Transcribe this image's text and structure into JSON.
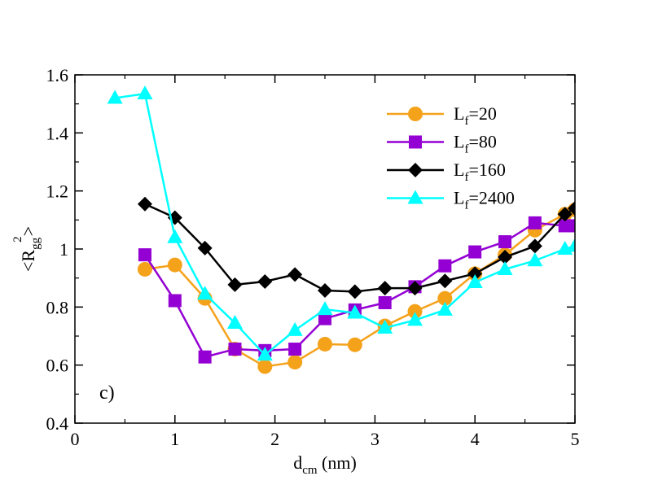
{
  "chart_data": {
    "type": "line",
    "title": "",
    "panel_label": "c)",
    "xlabel": {
      "main": "d",
      "sub": "cm",
      "suffix": " (nm)"
    },
    "ylabel": {
      "prefix": "<R",
      "sub": "gg",
      "sup": "2",
      "suffix": ">"
    },
    "xlim": [
      0,
      5
    ],
    "ylim": [
      0.4,
      1.6
    ],
    "xticks": [
      0,
      1,
      2,
      3,
      4,
      5
    ],
    "xtick_labels": [
      "0",
      "1",
      "2",
      "3",
      "4",
      "5"
    ],
    "yticks": [
      0.4,
      0.6,
      0.8,
      1.0,
      1.2,
      1.4,
      1.6
    ],
    "ytick_labels": [
      "0.4",
      "0.6",
      "0.8",
      "1",
      "1.2",
      "1.4",
      "1.6"
    ],
    "legend_position": "top-right",
    "series": [
      {
        "name": "Lf=20",
        "label_main": "L",
        "label_sub": "f",
        "label_rest": "=20",
        "color": "#f5a21b",
        "marker": "circle",
        "x": [
          0.7,
          1.0,
          1.3,
          1.6,
          1.9,
          2.2,
          2.5,
          2.8,
          3.1,
          3.4,
          3.7,
          4.0,
          4.3,
          4.6,
          4.9,
          5.0
        ],
        "y": [
          0.93,
          0.945,
          0.83,
          0.655,
          0.595,
          0.61,
          0.672,
          0.67,
          0.735,
          0.785,
          0.83,
          0.915,
          0.98,
          1.065,
          1.12,
          1.135
        ]
      },
      {
        "name": "Lf=80",
        "label_main": "L",
        "label_sub": "f",
        "label_rest": "=80",
        "color": "#9400d3",
        "marker": "square",
        "x": [
          0.7,
          1.0,
          1.3,
          1.6,
          1.9,
          2.2,
          2.5,
          2.8,
          3.1,
          3.4,
          3.7,
          4.0,
          4.3,
          4.6,
          4.9,
          5.0
        ],
        "y": [
          0.98,
          0.822,
          0.628,
          0.655,
          0.65,
          0.655,
          0.76,
          0.79,
          0.815,
          0.87,
          0.942,
          0.99,
          1.025,
          1.09,
          1.08,
          1.08
        ]
      },
      {
        "name": "Lf=160",
        "label_main": "L",
        "label_sub": "f",
        "label_rest": "=160",
        "color": "#000000",
        "marker": "diamond",
        "x": [
          0.7,
          1.0,
          1.3,
          1.6,
          1.9,
          2.2,
          2.5,
          2.8,
          3.1,
          3.4,
          3.7,
          4.0,
          4.3,
          4.6,
          4.9,
          5.0
        ],
        "y": [
          1.155,
          1.108,
          1.003,
          0.877,
          0.888,
          0.912,
          0.857,
          0.853,
          0.865,
          0.865,
          0.89,
          0.915,
          0.972,
          1.01,
          1.12,
          1.14
        ]
      },
      {
        "name": "Lf=2400",
        "label_main": "L",
        "label_sub": "f",
        "label_rest": "=2400",
        "color": "#00ffff",
        "marker": "triangle",
        "x": [
          0.4,
          0.7,
          1.0,
          1.3,
          1.6,
          1.9,
          2.2,
          2.5,
          2.8,
          3.1,
          3.4,
          3.7,
          4.0,
          4.3,
          4.6,
          4.9,
          5.0
        ],
        "y": [
          1.52,
          1.535,
          1.04,
          0.845,
          0.745,
          0.635,
          0.72,
          0.792,
          0.78,
          0.728,
          0.755,
          0.79,
          0.885,
          0.93,
          0.96,
          1.0,
          1.01
        ]
      }
    ]
  }
}
